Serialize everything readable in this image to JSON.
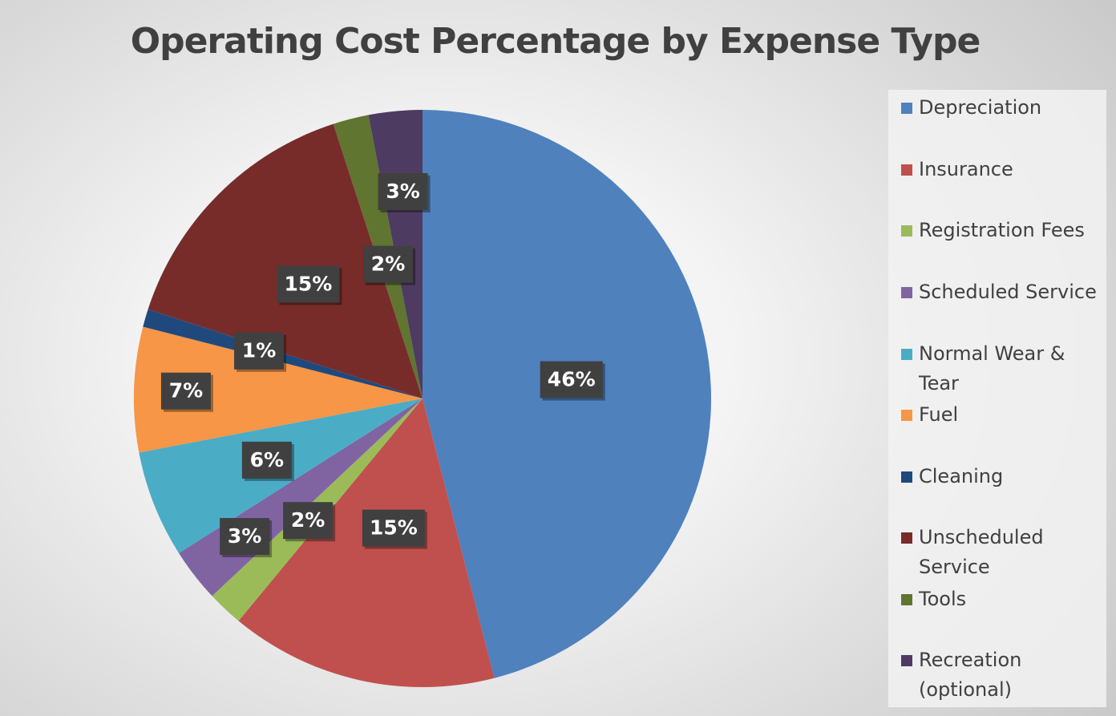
{
  "chart_data": {
    "type": "pie",
    "title": "Operating Cost Percentage by Expense Type",
    "legend_position": "right",
    "start_angle_deg": 0,
    "direction": "clockwise",
    "slices": [
      {
        "label": "Depreciation",
        "value": 46,
        "display": "46%",
        "color": "#4F81BD"
      },
      {
        "label": "Insurance",
        "value": 15,
        "display": "15%",
        "color": "#C0504D"
      },
      {
        "label": "Registration Fees",
        "value": 2,
        "display": "2%",
        "color": "#9BBB59"
      },
      {
        "label": "Scheduled Service",
        "value": 3,
        "display": "3%",
        "color": "#8064A2"
      },
      {
        "label": "Normal Wear & Tear",
        "value": 6,
        "display": "6%",
        "color": "#4BACC6"
      },
      {
        "label": "Fuel",
        "value": 7,
        "display": "7%",
        "color": "#F79646"
      },
      {
        "label": "Cleaning",
        "value": 1,
        "display": "1%",
        "color": "#1F497D"
      },
      {
        "label": "Unscheduled Service",
        "value": 15,
        "display": "15%",
        "color": "#772C2A"
      },
      {
        "label": "Tools",
        "value": 2,
        "display": "2%",
        "color": "#5F7530"
      },
      {
        "label": "Recreation (optional)",
        "value": 3,
        "display": "3%",
        "color": "#4D3B62"
      }
    ]
  }
}
